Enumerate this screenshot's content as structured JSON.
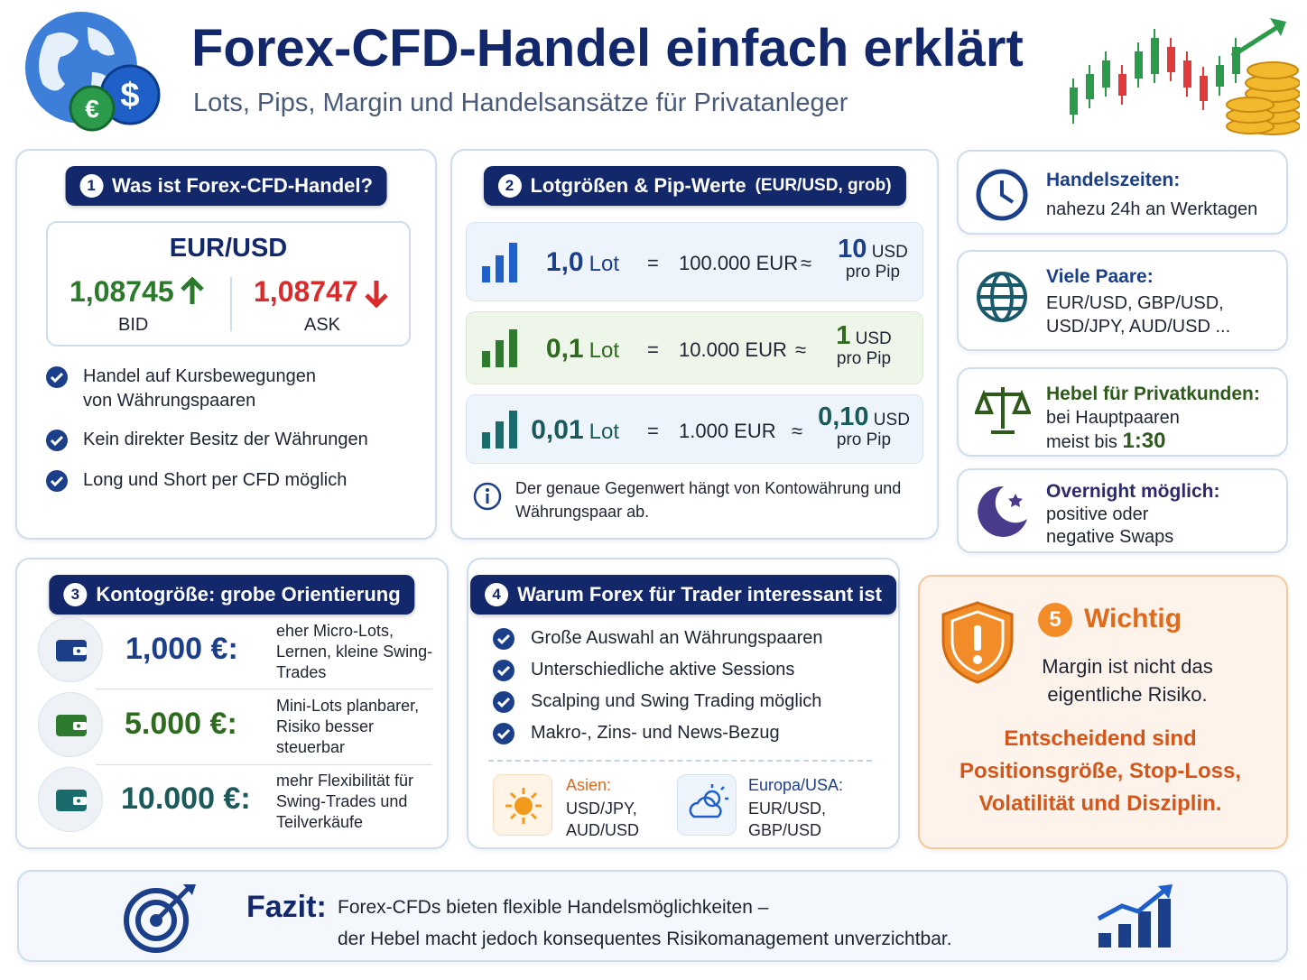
{
  "header": {
    "title": "Forex-CFD-Handel einfach erklärt",
    "subtitle": "Lots, Pips, Margin und Handelsansätze für Privatanleger"
  },
  "section1": {
    "number": "1",
    "title": "Was ist Forex-CFD-Handel?",
    "quote": {
      "pair": "EUR/USD",
      "bid": "1,08745",
      "bid_label": "BID",
      "ask": "1,08747",
      "ask_label": "ASK"
    },
    "points": [
      "Handel auf Kursbewegungen von Währungspaaren",
      "Kein direkter Besitz der Währungen",
      "Long und Short per CFD möglich"
    ]
  },
  "section2": {
    "number": "2",
    "title": "Lotgrößen & Pip-Werte",
    "title_note": "(EUR/USD, grob)",
    "equals": "=",
    "approx": "≈",
    "rows": [
      {
        "lot": "1,0",
        "lot_unit": "Lot",
        "amount": "100.000 EUR",
        "pip_value": "10",
        "pip_unit": "USD",
        "pip_label": "pro Pip"
      },
      {
        "lot": "0,1",
        "lot_unit": "Lot",
        "amount": "10.000 EUR",
        "pip_value": "1",
        "pip_unit": "USD",
        "pip_label": "pro Pip"
      },
      {
        "lot": "0,01",
        "lot_unit": "Lot",
        "amount": "1.000 EUR",
        "pip_value": "0,10",
        "pip_unit": "USD",
        "pip_label": "pro Pip"
      }
    ],
    "note": "Der genaue Gegenwert hängt von Kontowährung und Währungspaar ab."
  },
  "info_cards": [
    {
      "title": "Handelszeiten:",
      "text": "nahezu 24h an Werktagen"
    },
    {
      "title": "Viele Paare:",
      "text": "EUR/USD, GBP/USD, USD/JPY, AUD/USD ..."
    },
    {
      "title": "Hebel für Privatkunden:",
      "text": "bei Hauptpaaren meist bis",
      "highlight": "1:30"
    },
    {
      "title": "Overnight möglich:",
      "text": "positive oder negative Swaps"
    }
  ],
  "section3": {
    "number": "3",
    "title": "Kontogröße: grobe Orientierung",
    "rows": [
      {
        "amount": "1,000 €:",
        "text": "eher Micro-Lots, Lernen, kleine Swing-Trades"
      },
      {
        "amount": "5.000 €:",
        "text": "Mini-Lots planbarer, Risiko besser steuerbar"
      },
      {
        "amount": "10.000 €:",
        "text": "mehr Flexibilität für Swing-Trades und Teilverkäufe"
      }
    ]
  },
  "section4": {
    "number": "4",
    "title": "Warum Forex für Trader interessant ist",
    "points": [
      "Große Auswahl an Währungspaaren",
      "Unterschiedliche aktive Sessions",
      "Scalping und Swing Trading möglich",
      "Makro-, Zins- und News-Bezug"
    ],
    "sessions": [
      {
        "name": "Asien:",
        "pairs": "USD/JPY, AUD/USD"
      },
      {
        "name": "Europa/USA:",
        "pairs": "EUR/USD, GBP/USD"
      }
    ]
  },
  "section5": {
    "number": "5",
    "title": "Wichtig",
    "text": "Margin ist nicht das eigentliche Risiko.",
    "emphasis": "Entscheidend sind Positionsgröße, Stop-Loss, Volatilität und Disziplin."
  },
  "conclusion": {
    "label": "Fazit:",
    "lines": [
      "Forex-CFDs bieten flexible Handelsmöglichkeiten –",
      "der Hebel macht jedoch konsequentes Risikomanagement unverzichtbar."
    ]
  }
}
